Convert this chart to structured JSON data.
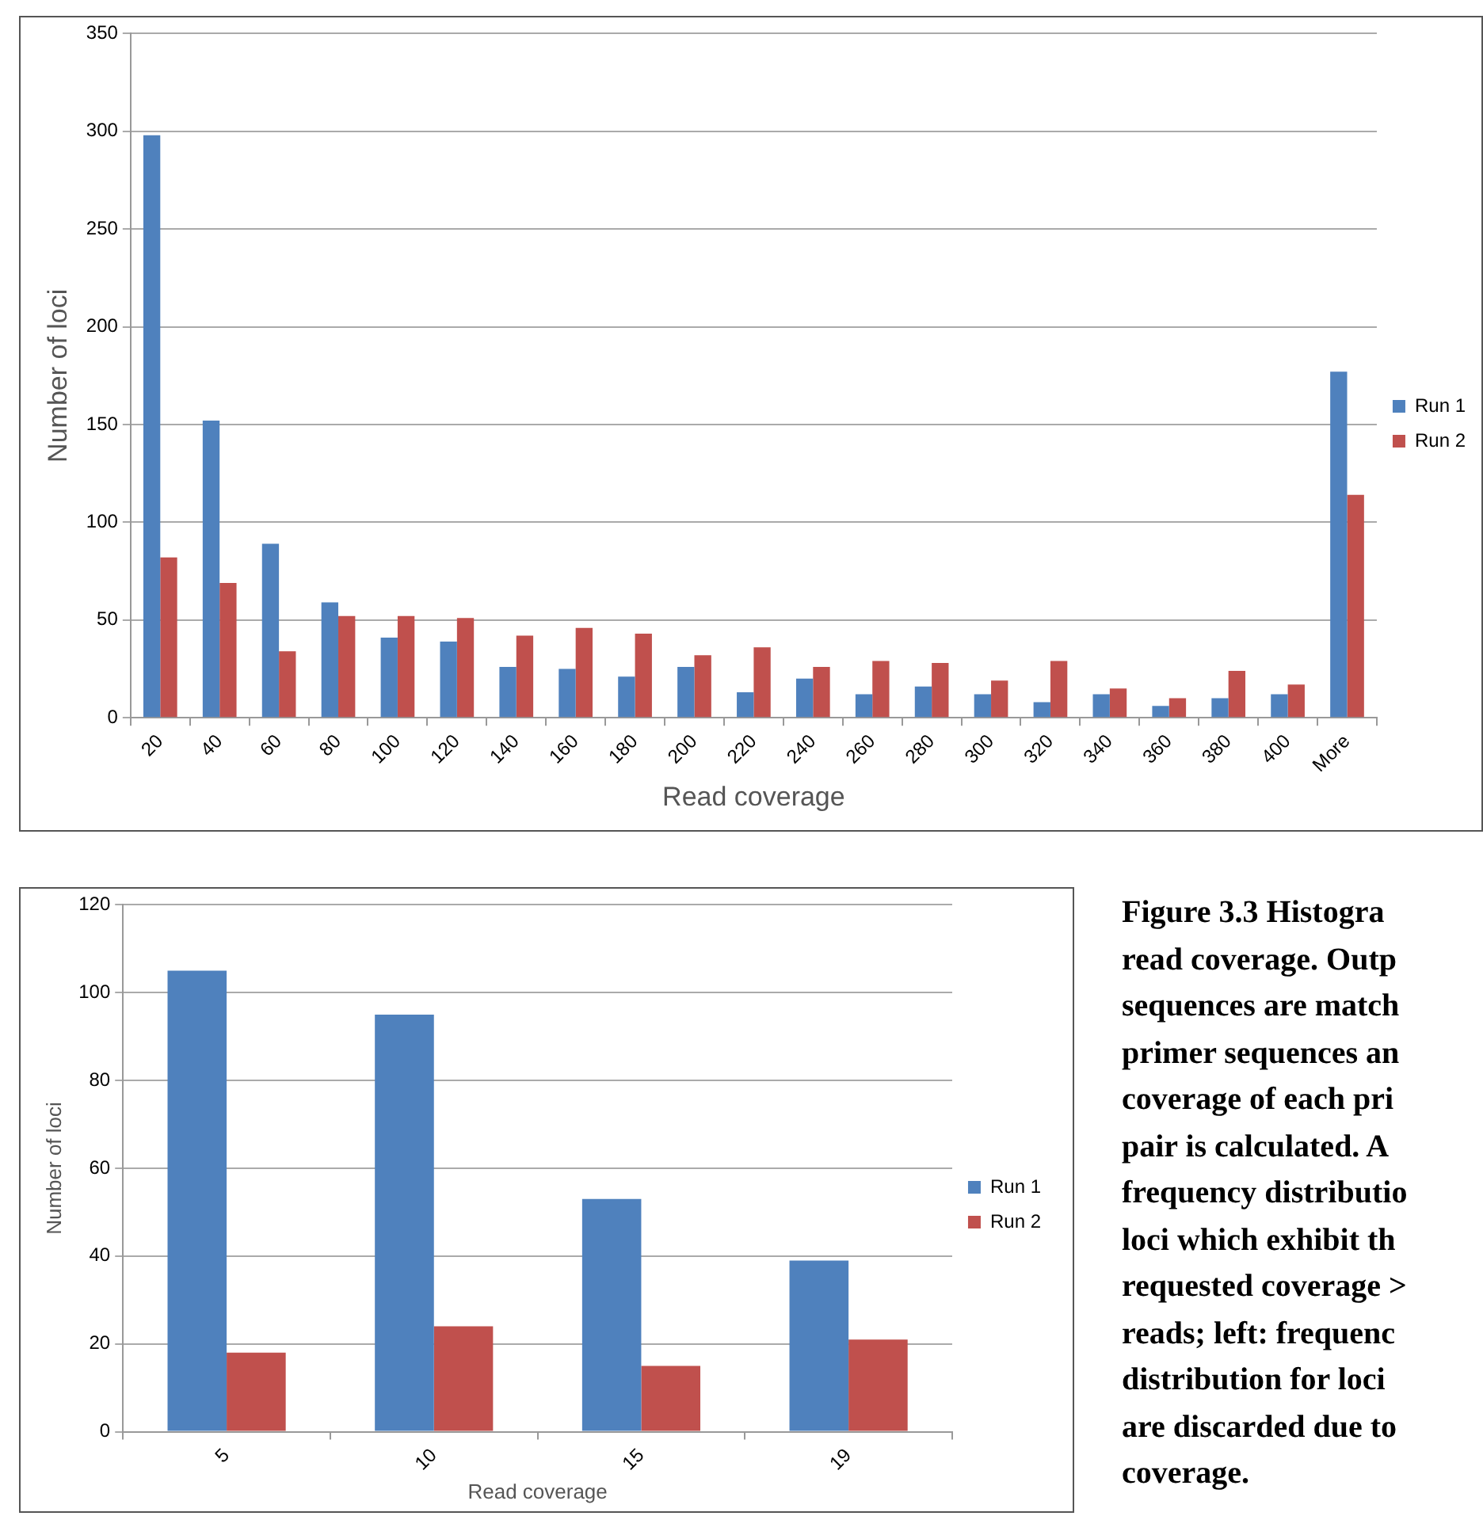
{
  "chart_data": [
    {
      "type": "bar",
      "xlabel": "Read coverage",
      "ylabel": "Number of loci",
      "categories": [
        "20",
        "40",
        "60",
        "80",
        "100",
        "120",
        "140",
        "160",
        "180",
        "200",
        "220",
        "240",
        "260",
        "280",
        "300",
        "320",
        "340",
        "360",
        "380",
        "400",
        "More"
      ],
      "series": [
        {
          "name": "Run 1",
          "color": "#4f81bd",
          "values": [
            298,
            152,
            89,
            59,
            41,
            39,
            26,
            25,
            21,
            26,
            13,
            20,
            12,
            16,
            12,
            8,
            12,
            6,
            10,
            12,
            177
          ]
        },
        {
          "name": "Run 2",
          "color": "#c0504d",
          "values": [
            82,
            69,
            34,
            52,
            52,
            51,
            42,
            46,
            43,
            32,
            36,
            26,
            29,
            28,
            19,
            29,
            15,
            10,
            24,
            17,
            114
          ]
        }
      ],
      "ylim": [
        0,
        350
      ],
      "yticks": [
        0,
        50,
        100,
        150,
        200,
        250,
        300,
        350
      ],
      "grid": "y",
      "legend": "right"
    },
    {
      "type": "bar",
      "xlabel": "Read coverage",
      "ylabel": "Number of loci",
      "categories": [
        "5",
        "10",
        "15",
        "19"
      ],
      "series": [
        {
          "name": "Run 1",
          "color": "#4f81bd",
          "values": [
            105,
            95,
            53,
            39
          ]
        },
        {
          "name": "Run 2",
          "color": "#c0504d",
          "values": [
            18,
            24,
            15,
            21
          ]
        }
      ],
      "ylim": [
        0,
        120
      ],
      "yticks": [
        0,
        20,
        40,
        60,
        80,
        100,
        120
      ],
      "grid": "y",
      "legend": "right",
      "annotations": [
        "Figure 3.3 Histogra\nread coverage. Outp\nsequences are match\nprimer sequences an\ncoverage of each pri\npair is calculated. A\nfrequency distributio\nloci which exhibit th\nrequested coverage >\nreads; left: frequenc\ndistribution for loci\nare discarded due to\ncoverage."
      ]
    }
  ]
}
